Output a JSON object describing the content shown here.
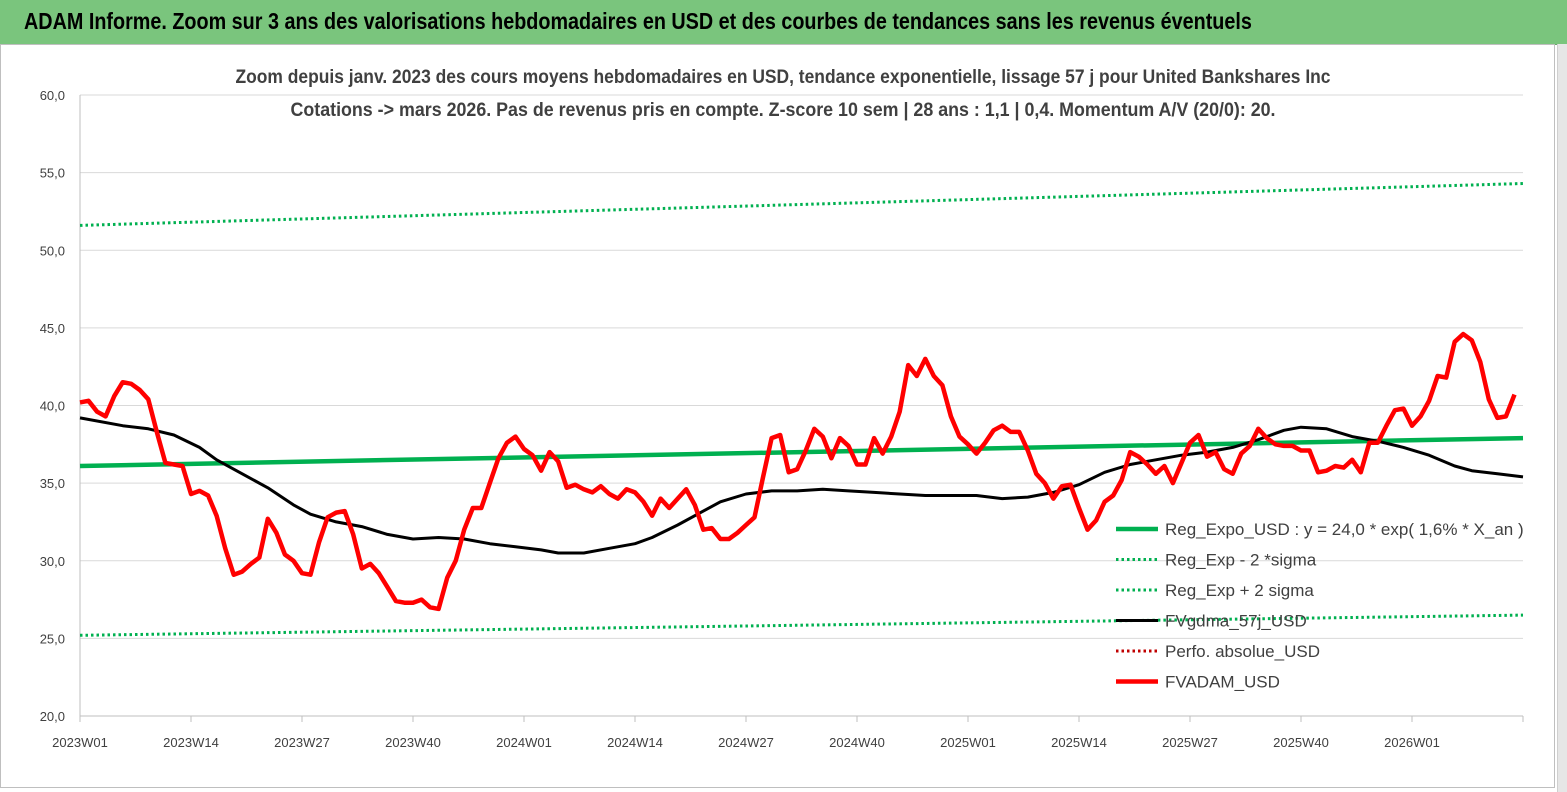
{
  "banner": {
    "title": "ADAM Informe. Zoom sur 3 ans des valorisations hebdomadaires en USD et des courbes de tendances sans les revenus éventuels"
  },
  "colors": {
    "banner": "#7ac57d",
    "green": "#00b050",
    "black": "#000000",
    "red": "#ff0000",
    "dot_red": "#c00000"
  },
  "chart_data": {
    "type": "line",
    "title": "Zoom depuis janv. 2023 des cours moyens hebdomadaires en USD, tendance exponentielle, lissage 57 j pour United Bankshares Inc",
    "subtitle": "Cotations -> mars 2026. Pas de revenus pris en compte. Z-score 10 sem  | 28 ans : 1,1  | 0,4. Momentum A/V (20/0): 20.",
    "ylim": [
      20,
      60
    ],
    "yticks": [
      "20,0",
      "25,0",
      "30,0",
      "35,0",
      "40,0",
      "45,0",
      "50,0",
      "55,0",
      "60,0"
    ],
    "xticks": [
      "2023W01",
      "2023W14",
      "2023W27",
      "2023W40",
      "2024W01",
      "2024W14",
      "2024W27",
      "2024W40",
      "2025W01",
      "2025W14",
      "2025W27",
      "2025W40",
      "2026W01"
    ],
    "x_start": "2023W01",
    "n_weeks": 170,
    "grid": "horizontal",
    "legend_position": "bottom-right",
    "series": [
      {
        "name": "Reg_Expo_USD : y = 24,0 * exp( 1,6% *  X_an )",
        "style": "solid-thick",
        "color": "#00b050",
        "points": [
          [
            0,
            36.1
          ],
          [
            169,
            37.9
          ]
        ]
      },
      {
        "name": "Reg_Exp - 2 *sigma",
        "style": "dotted",
        "color": "#00b050",
        "points": [
          [
            0,
            25.2
          ],
          [
            169,
            26.5
          ]
        ]
      },
      {
        "name": "Reg_Exp + 2 sigma",
        "style": "dotted",
        "color": "#00b050",
        "points": [
          [
            0,
            51.6
          ],
          [
            169,
            54.3
          ]
        ]
      },
      {
        "name": "FVgdma_57j_USD",
        "style": "solid",
        "color": "#000000",
        "points": [
          [
            0,
            39.2
          ],
          [
            5,
            38.7
          ],
          [
            8,
            38.5
          ],
          [
            11,
            38.1
          ],
          [
            14,
            37.3
          ],
          [
            16,
            36.5
          ],
          [
            19,
            35.6
          ],
          [
            22,
            34.7
          ],
          [
            25,
            33.6
          ],
          [
            27,
            33.0
          ],
          [
            30,
            32.5
          ],
          [
            33,
            32.2
          ],
          [
            36,
            31.7
          ],
          [
            39,
            31.4
          ],
          [
            42,
            31.5
          ],
          [
            45,
            31.4
          ],
          [
            48,
            31.1
          ],
          [
            51,
            30.9
          ],
          [
            54,
            30.7
          ],
          [
            56,
            30.5
          ],
          [
            59,
            30.5
          ],
          [
            62,
            30.8
          ],
          [
            65,
            31.1
          ],
          [
            67,
            31.5
          ],
          [
            70,
            32.3
          ],
          [
            73,
            33.2
          ],
          [
            75,
            33.8
          ],
          [
            78,
            34.3
          ],
          [
            81,
            34.5
          ],
          [
            84,
            34.5
          ],
          [
            87,
            34.6
          ],
          [
            90,
            34.5
          ],
          [
            93,
            34.4
          ],
          [
            96,
            34.3
          ],
          [
            99,
            34.2
          ],
          [
            102,
            34.2
          ],
          [
            105,
            34.2
          ],
          [
            108,
            34.0
          ],
          [
            111,
            34.1
          ],
          [
            114,
            34.4
          ],
          [
            117,
            34.9
          ],
          [
            120,
            35.7
          ],
          [
            123,
            36.2
          ],
          [
            126,
            36.5
          ],
          [
            129,
            36.8
          ],
          [
            132,
            37.0
          ],
          [
            135,
            37.3
          ],
          [
            138,
            37.8
          ],
          [
            141,
            38.4
          ],
          [
            143,
            38.6
          ],
          [
            146,
            38.5
          ],
          [
            149,
            38.0
          ],
          [
            152,
            37.7
          ],
          [
            155,
            37.3
          ],
          [
            158,
            36.8
          ],
          [
            161,
            36.1
          ],
          [
            163,
            35.8
          ],
          [
            166,
            35.6
          ],
          [
            169,
            35.4
          ]
        ]
      },
      {
        "name": "Perfo. absolue_USD",
        "style": "dotted",
        "color": "#c00000",
        "points": []
      },
      {
        "name": "FVADAM_USD",
        "style": "solid-thick",
        "color": "#ff0000",
        "points": [
          [
            0,
            40.2
          ],
          [
            1,
            40.3
          ],
          [
            2,
            39.6
          ],
          [
            3,
            39.3
          ],
          [
            4,
            40.6
          ],
          [
            5,
            41.5
          ],
          [
            6,
            41.4
          ],
          [
            7,
            41.0
          ],
          [
            8,
            40.4
          ],
          [
            9,
            38.3
          ],
          [
            10,
            36.3
          ],
          [
            11,
            36.2
          ],
          [
            12,
            36.1
          ],
          [
            13,
            34.3
          ],
          [
            14,
            34.5
          ],
          [
            15,
            34.2
          ],
          [
            16,
            32.9
          ],
          [
            17,
            30.8
          ],
          [
            18,
            29.1
          ],
          [
            19,
            29.3
          ],
          [
            20,
            29.8
          ],
          [
            21,
            30.2
          ],
          [
            22,
            32.7
          ],
          [
            23,
            31.8
          ],
          [
            24,
            30.4
          ],
          [
            25,
            30.0
          ],
          [
            26,
            29.2
          ],
          [
            27,
            29.1
          ],
          [
            28,
            31.2
          ],
          [
            29,
            32.8
          ],
          [
            30,
            33.1
          ],
          [
            31,
            33.2
          ],
          [
            32,
            31.7
          ],
          [
            33,
            29.5
          ],
          [
            34,
            29.8
          ],
          [
            35,
            29.2
          ],
          [
            36,
            28.3
          ],
          [
            37,
            27.4
          ],
          [
            38,
            27.3
          ],
          [
            39,
            27.3
          ],
          [
            40,
            27.5
          ],
          [
            41,
            27.0
          ],
          [
            42,
            26.9
          ],
          [
            43,
            28.9
          ],
          [
            44,
            30.0
          ],
          [
            45,
            32.0
          ],
          [
            46,
            33.4
          ],
          [
            47,
            33.4
          ],
          [
            48,
            35.0
          ],
          [
            49,
            36.6
          ],
          [
            50,
            37.6
          ],
          [
            51,
            38.0
          ],
          [
            52,
            37.2
          ],
          [
            53,
            36.8
          ],
          [
            54,
            35.8
          ],
          [
            55,
            37.0
          ],
          [
            56,
            36.4
          ],
          [
            57,
            34.7
          ],
          [
            58,
            34.9
          ],
          [
            59,
            34.6
          ],
          [
            60,
            34.4
          ],
          [
            61,
            34.8
          ],
          [
            62,
            34.3
          ],
          [
            63,
            34.0
          ],
          [
            64,
            34.6
          ],
          [
            65,
            34.4
          ],
          [
            66,
            33.8
          ],
          [
            67,
            32.9
          ],
          [
            68,
            34.0
          ],
          [
            69,
            33.4
          ],
          [
            70,
            34.0
          ],
          [
            71,
            34.6
          ],
          [
            72,
            33.6
          ],
          [
            73,
            32.0
          ],
          [
            74,
            32.1
          ],
          [
            75,
            31.4
          ],
          [
            76,
            31.4
          ],
          [
            77,
            31.8
          ],
          [
            78,
            32.3
          ],
          [
            79,
            32.8
          ],
          [
            80,
            35.4
          ],
          [
            81,
            37.9
          ],
          [
            82,
            38.1
          ],
          [
            83,
            35.7
          ],
          [
            84,
            35.9
          ],
          [
            85,
            37.1
          ],
          [
            86,
            38.5
          ],
          [
            87,
            38.0
          ],
          [
            88,
            36.6
          ],
          [
            89,
            37.9
          ],
          [
            90,
            37.4
          ],
          [
            91,
            36.2
          ],
          [
            92,
            36.2
          ],
          [
            93,
            37.9
          ],
          [
            94,
            36.9
          ],
          [
            95,
            38.0
          ],
          [
            96,
            39.6
          ],
          [
            97,
            42.6
          ],
          [
            98,
            41.9
          ],
          [
            99,
            43.0
          ],
          [
            100,
            41.9
          ],
          [
            101,
            41.3
          ],
          [
            102,
            39.3
          ],
          [
            103,
            38.0
          ],
          [
            104,
            37.5
          ],
          [
            105,
            36.9
          ],
          [
            106,
            37.6
          ],
          [
            107,
            38.4
          ],
          [
            108,
            38.7
          ],
          [
            109,
            38.3
          ],
          [
            110,
            38.3
          ],
          [
            111,
            37.1
          ],
          [
            112,
            35.6
          ],
          [
            113,
            35.0
          ],
          [
            114,
            34.0
          ],
          [
            115,
            34.8
          ],
          [
            116,
            34.9
          ],
          [
            117,
            33.4
          ],
          [
            118,
            32.0
          ],
          [
            119,
            32.6
          ],
          [
            120,
            33.8
          ],
          [
            121,
            34.2
          ],
          [
            122,
            35.2
          ],
          [
            123,
            37.0
          ],
          [
            124,
            36.7
          ],
          [
            125,
            36.2
          ],
          [
            126,
            35.6
          ],
          [
            127,
            36.1
          ],
          [
            128,
            35.0
          ],
          [
            129,
            36.3
          ],
          [
            130,
            37.6
          ],
          [
            131,
            38.1
          ],
          [
            132,
            36.7
          ],
          [
            133,
            37.0
          ],
          [
            134,
            35.9
          ],
          [
            135,
            35.6
          ],
          [
            136,
            36.9
          ],
          [
            137,
            37.4
          ],
          [
            138,
            38.5
          ],
          [
            139,
            37.9
          ],
          [
            140,
            37.5
          ],
          [
            141,
            37.4
          ],
          [
            142,
            37.4
          ],
          [
            143,
            37.1
          ],
          [
            144,
            37.1
          ],
          [
            145,
            35.7
          ],
          [
            146,
            35.8
          ],
          [
            147,
            36.1
          ],
          [
            148,
            36.0
          ],
          [
            149,
            36.5
          ],
          [
            150,
            35.7
          ],
          [
            151,
            37.6
          ],
          [
            152,
            37.6
          ],
          [
            153,
            38.7
          ],
          [
            154,
            39.7
          ],
          [
            155,
            39.8
          ],
          [
            156,
            38.7
          ],
          [
            157,
            39.3
          ],
          [
            158,
            40.3
          ],
          [
            159,
            41.9
          ],
          [
            160,
            41.8
          ],
          [
            161,
            44.1
          ],
          [
            162,
            44.6
          ],
          [
            163,
            44.2
          ],
          [
            164,
            42.8
          ],
          [
            165,
            40.4
          ],
          [
            166,
            39.2
          ],
          [
            167,
            39.3
          ],
          [
            168,
            40.7
          ]
        ]
      }
    ]
  }
}
